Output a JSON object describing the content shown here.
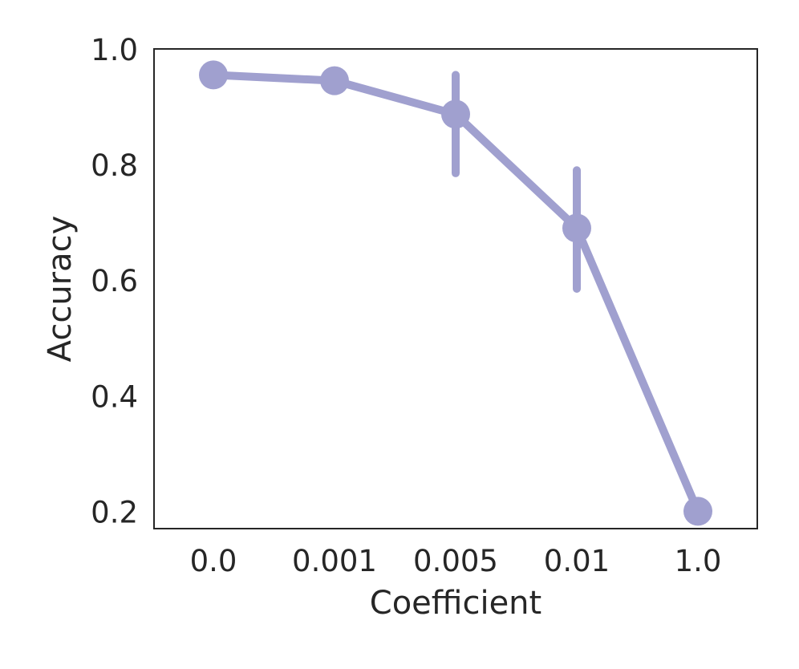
{
  "chart_data": {
    "type": "line",
    "title": "",
    "xlabel": "Coefficient",
    "ylabel": "Accuracy",
    "categories": [
      "0.0",
      "0.001",
      "0.005",
      "0.01",
      "1.0"
    ],
    "series": [
      {
        "color": "#a0a0cf",
        "values": [
          0.955,
          0.945,
          0.887,
          0.69,
          0.2
        ],
        "error_low": [
          0.955,
          0.945,
          0.785,
          0.585,
          0.2
        ],
        "error_high": [
          0.955,
          0.95,
          0.955,
          0.79,
          0.2
        ]
      }
    ],
    "ylim": [
      0.17,
      1.0
    ],
    "yticks": [
      0.2,
      0.4,
      0.6,
      0.8,
      1.0
    ],
    "ytick_labels": [
      "0.2",
      "0.4",
      "0.6",
      "0.8",
      "1.0"
    ],
    "grid": false,
    "legend": "none"
  }
}
